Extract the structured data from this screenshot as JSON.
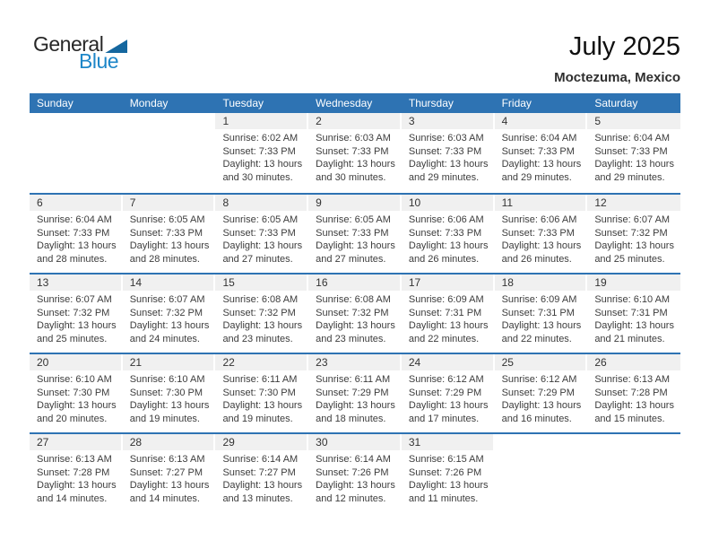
{
  "logo": {
    "general": "General",
    "blue": "Blue"
  },
  "header": {
    "title": "July 2025",
    "location": "Moctezuma, Mexico"
  },
  "weekdays": [
    "Sunday",
    "Monday",
    "Tuesday",
    "Wednesday",
    "Thursday",
    "Friday",
    "Saturday"
  ],
  "colors": {
    "header_blue": "#2E73B3",
    "band_gray": "#F0F0F0",
    "logo_blue": "#1d86c8",
    "separator_blue": "#2E73B3"
  },
  "weeks": [
    [
      null,
      null,
      {
        "day": "1",
        "sunrise": "Sunrise: 6:02 AM",
        "sunset": "Sunset: 7:33 PM",
        "daylight": "Daylight: 13 hours and 30 minutes."
      },
      {
        "day": "2",
        "sunrise": "Sunrise: 6:03 AM",
        "sunset": "Sunset: 7:33 PM",
        "daylight": "Daylight: 13 hours and 30 minutes."
      },
      {
        "day": "3",
        "sunrise": "Sunrise: 6:03 AM",
        "sunset": "Sunset: 7:33 PM",
        "daylight": "Daylight: 13 hours and 29 minutes."
      },
      {
        "day": "4",
        "sunrise": "Sunrise: 6:04 AM",
        "sunset": "Sunset: 7:33 PM",
        "daylight": "Daylight: 13 hours and 29 minutes."
      },
      {
        "day": "5",
        "sunrise": "Sunrise: 6:04 AM",
        "sunset": "Sunset: 7:33 PM",
        "daylight": "Daylight: 13 hours and 29 minutes."
      }
    ],
    [
      {
        "day": "6",
        "sunrise": "Sunrise: 6:04 AM",
        "sunset": "Sunset: 7:33 PM",
        "daylight": "Daylight: 13 hours and 28 minutes."
      },
      {
        "day": "7",
        "sunrise": "Sunrise: 6:05 AM",
        "sunset": "Sunset: 7:33 PM",
        "daylight": "Daylight: 13 hours and 28 minutes."
      },
      {
        "day": "8",
        "sunrise": "Sunrise: 6:05 AM",
        "sunset": "Sunset: 7:33 PM",
        "daylight": "Daylight: 13 hours and 27 minutes."
      },
      {
        "day": "9",
        "sunrise": "Sunrise: 6:05 AM",
        "sunset": "Sunset: 7:33 PM",
        "daylight": "Daylight: 13 hours and 27 minutes."
      },
      {
        "day": "10",
        "sunrise": "Sunrise: 6:06 AM",
        "sunset": "Sunset: 7:33 PM",
        "daylight": "Daylight: 13 hours and 26 minutes."
      },
      {
        "day": "11",
        "sunrise": "Sunrise: 6:06 AM",
        "sunset": "Sunset: 7:33 PM",
        "daylight": "Daylight: 13 hours and 26 minutes."
      },
      {
        "day": "12",
        "sunrise": "Sunrise: 6:07 AM",
        "sunset": "Sunset: 7:32 PM",
        "daylight": "Daylight: 13 hours and 25 minutes."
      }
    ],
    [
      {
        "day": "13",
        "sunrise": "Sunrise: 6:07 AM",
        "sunset": "Sunset: 7:32 PM",
        "daylight": "Daylight: 13 hours and 25 minutes."
      },
      {
        "day": "14",
        "sunrise": "Sunrise: 6:07 AM",
        "sunset": "Sunset: 7:32 PM",
        "daylight": "Daylight: 13 hours and 24 minutes."
      },
      {
        "day": "15",
        "sunrise": "Sunrise: 6:08 AM",
        "sunset": "Sunset: 7:32 PM",
        "daylight": "Daylight: 13 hours and 23 minutes."
      },
      {
        "day": "16",
        "sunrise": "Sunrise: 6:08 AM",
        "sunset": "Sunset: 7:32 PM",
        "daylight": "Daylight: 13 hours and 23 minutes."
      },
      {
        "day": "17",
        "sunrise": "Sunrise: 6:09 AM",
        "sunset": "Sunset: 7:31 PM",
        "daylight": "Daylight: 13 hours and 22 minutes."
      },
      {
        "day": "18",
        "sunrise": "Sunrise: 6:09 AM",
        "sunset": "Sunset: 7:31 PM",
        "daylight": "Daylight: 13 hours and 22 minutes."
      },
      {
        "day": "19",
        "sunrise": "Sunrise: 6:10 AM",
        "sunset": "Sunset: 7:31 PM",
        "daylight": "Daylight: 13 hours and 21 minutes."
      }
    ],
    [
      {
        "day": "20",
        "sunrise": "Sunrise: 6:10 AM",
        "sunset": "Sunset: 7:30 PM",
        "daylight": "Daylight: 13 hours and 20 minutes."
      },
      {
        "day": "21",
        "sunrise": "Sunrise: 6:10 AM",
        "sunset": "Sunset: 7:30 PM",
        "daylight": "Daylight: 13 hours and 19 minutes."
      },
      {
        "day": "22",
        "sunrise": "Sunrise: 6:11 AM",
        "sunset": "Sunset: 7:30 PM",
        "daylight": "Daylight: 13 hours and 19 minutes."
      },
      {
        "day": "23",
        "sunrise": "Sunrise: 6:11 AM",
        "sunset": "Sunset: 7:29 PM",
        "daylight": "Daylight: 13 hours and 18 minutes."
      },
      {
        "day": "24",
        "sunrise": "Sunrise: 6:12 AM",
        "sunset": "Sunset: 7:29 PM",
        "daylight": "Daylight: 13 hours and 17 minutes."
      },
      {
        "day": "25",
        "sunrise": "Sunrise: 6:12 AM",
        "sunset": "Sunset: 7:29 PM",
        "daylight": "Daylight: 13 hours and 16 minutes."
      },
      {
        "day": "26",
        "sunrise": "Sunrise: 6:13 AM",
        "sunset": "Sunset: 7:28 PM",
        "daylight": "Daylight: 13 hours and 15 minutes."
      }
    ],
    [
      {
        "day": "27",
        "sunrise": "Sunrise: 6:13 AM",
        "sunset": "Sunset: 7:28 PM",
        "daylight": "Daylight: 13 hours and 14 minutes."
      },
      {
        "day": "28",
        "sunrise": "Sunrise: 6:13 AM",
        "sunset": "Sunset: 7:27 PM",
        "daylight": "Daylight: 13 hours and 14 minutes."
      },
      {
        "day": "29",
        "sunrise": "Sunrise: 6:14 AM",
        "sunset": "Sunset: 7:27 PM",
        "daylight": "Daylight: 13 hours and 13 minutes."
      },
      {
        "day": "30",
        "sunrise": "Sunrise: 6:14 AM",
        "sunset": "Sunset: 7:26 PM",
        "daylight": "Daylight: 13 hours and 12 minutes."
      },
      {
        "day": "31",
        "sunrise": "Sunrise: 6:15 AM",
        "sunset": "Sunset: 7:26 PM",
        "daylight": "Daylight: 13 hours and 11 minutes."
      },
      null,
      null
    ]
  ]
}
